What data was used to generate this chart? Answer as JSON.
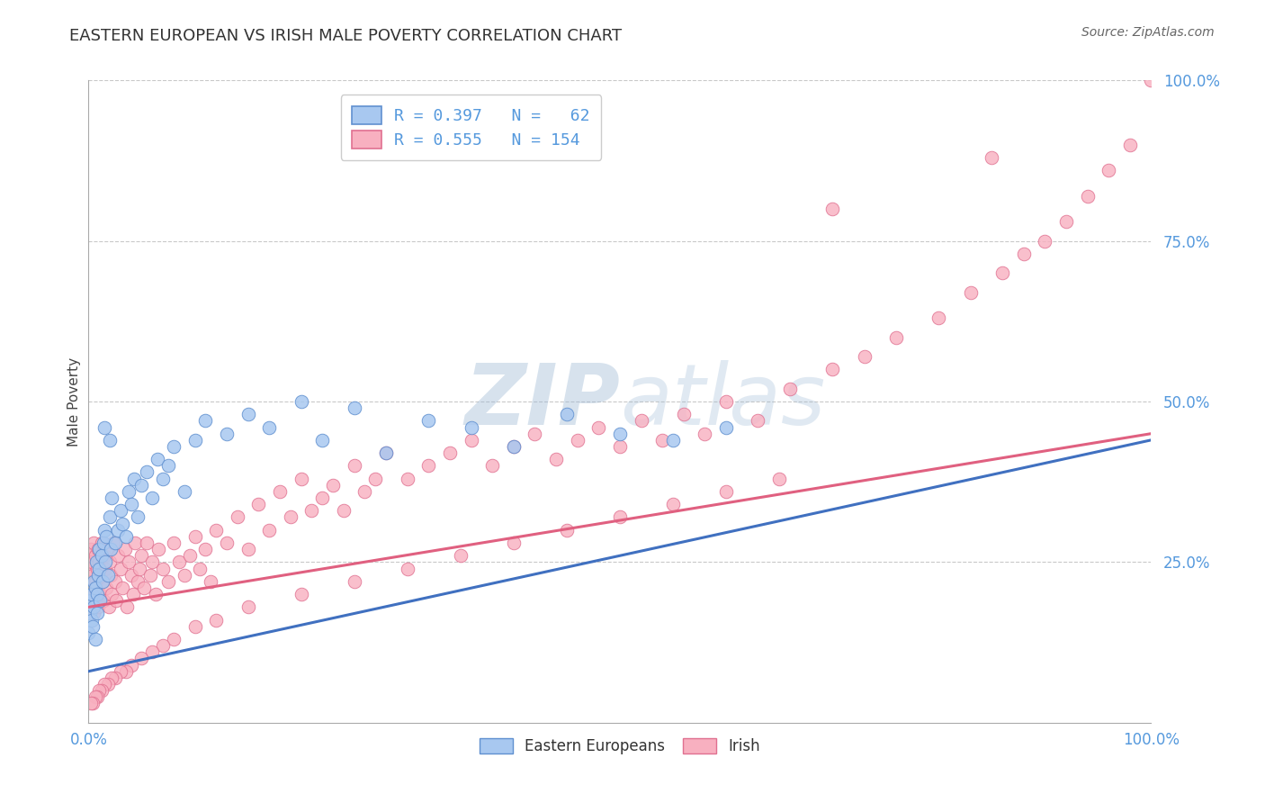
{
  "title": "EASTERN EUROPEAN VS IRISH MALE POVERTY CORRELATION CHART",
  "source": "Source: ZipAtlas.com",
  "ylabel": "Male Poverty",
  "legend_label1": "Eastern Europeans",
  "legend_label2": "Irish",
  "color_blue_fill": "#A8C8F0",
  "color_pink_fill": "#F8B0C0",
  "color_blue_edge": "#6090D0",
  "color_pink_edge": "#E07090",
  "color_blue_line": "#4070C0",
  "color_pink_line": "#E06080",
  "color_tick_label": "#5599DD",
  "color_grid": "#BBBBBB",
  "watermark_color": "#C8D8EC",
  "blue_line_x0": 0.0,
  "blue_line_x1": 1.0,
  "blue_line_y0": 0.08,
  "blue_line_y1": 0.44,
  "pink_line_x0": 0.0,
  "pink_line_x1": 1.0,
  "pink_line_y0": 0.18,
  "pink_line_y1": 0.45,
  "xlim": [
    0,
    1
  ],
  "ylim": [
    0,
    1
  ],
  "blue_x": [
    0.0,
    0.001,
    0.002,
    0.003,
    0.003,
    0.004,
    0.005,
    0.005,
    0.006,
    0.006,
    0.007,
    0.008,
    0.008,
    0.009,
    0.01,
    0.01,
    0.011,
    0.012,
    0.013,
    0.014,
    0.015,
    0.016,
    0.017,
    0.018,
    0.02,
    0.021,
    0.022,
    0.025,
    0.028,
    0.03,
    0.032,
    0.035,
    0.038,
    0.04,
    0.043,
    0.046,
    0.05,
    0.055,
    0.06,
    0.065,
    0.07,
    0.075,
    0.08,
    0.09,
    0.1,
    0.11,
    0.13,
    0.15,
    0.17,
    0.2,
    0.22,
    0.25,
    0.28,
    0.32,
    0.36,
    0.4,
    0.45,
    0.5,
    0.55,
    0.6,
    0.02,
    0.015
  ],
  "blue_y": [
    0.14,
    0.17,
    0.19,
    0.16,
    0.2,
    0.15,
    0.18,
    0.22,
    0.13,
    0.21,
    0.25,
    0.2,
    0.17,
    0.23,
    0.24,
    0.27,
    0.19,
    0.26,
    0.22,
    0.28,
    0.3,
    0.25,
    0.29,
    0.23,
    0.32,
    0.27,
    0.35,
    0.28,
    0.3,
    0.33,
    0.31,
    0.29,
    0.36,
    0.34,
    0.38,
    0.32,
    0.37,
    0.39,
    0.35,
    0.41,
    0.38,
    0.4,
    0.43,
    0.36,
    0.44,
    0.47,
    0.45,
    0.48,
    0.46,
    0.5,
    0.44,
    0.49,
    0.42,
    0.47,
    0.46,
    0.43,
    0.48,
    0.45,
    0.44,
    0.46,
    0.44,
    0.46
  ],
  "pink_x": [
    0.0,
    0.0,
    0.001,
    0.001,
    0.002,
    0.002,
    0.003,
    0.003,
    0.004,
    0.004,
    0.005,
    0.005,
    0.006,
    0.006,
    0.007,
    0.008,
    0.008,
    0.009,
    0.009,
    0.01,
    0.01,
    0.011,
    0.012,
    0.013,
    0.014,
    0.015,
    0.016,
    0.017,
    0.018,
    0.019,
    0.02,
    0.021,
    0.022,
    0.023,
    0.025,
    0.026,
    0.028,
    0.03,
    0.032,
    0.034,
    0.036,
    0.038,
    0.04,
    0.042,
    0.044,
    0.046,
    0.048,
    0.05,
    0.052,
    0.055,
    0.058,
    0.06,
    0.063,
    0.066,
    0.07,
    0.075,
    0.08,
    0.085,
    0.09,
    0.095,
    0.1,
    0.105,
    0.11,
    0.115,
    0.12,
    0.13,
    0.14,
    0.15,
    0.16,
    0.17,
    0.18,
    0.19,
    0.2,
    0.21,
    0.22,
    0.23,
    0.24,
    0.25,
    0.26,
    0.27,
    0.28,
    0.3,
    0.32,
    0.34,
    0.36,
    0.38,
    0.4,
    0.42,
    0.44,
    0.46,
    0.48,
    0.5,
    0.52,
    0.54,
    0.56,
    0.58,
    0.6,
    0.63,
    0.66,
    0.7,
    0.73,
    0.76,
    0.8,
    0.83,
    0.86,
    0.88,
    0.9,
    0.92,
    0.94,
    0.96,
    0.98,
    1.0,
    0.85,
    0.7,
    0.65,
    0.6,
    0.55,
    0.5,
    0.45,
    0.4,
    0.35,
    0.3,
    0.25,
    0.2,
    0.15,
    0.12,
    0.1,
    0.08,
    0.07,
    0.06,
    0.05,
    0.04,
    0.035,
    0.03,
    0.025,
    0.022,
    0.018,
    0.015,
    0.012,
    0.01,
    0.008,
    0.006,
    0.004,
    0.002
  ],
  "pink_y": [
    0.22,
    0.26,
    0.19,
    0.24,
    0.21,
    0.27,
    0.18,
    0.25,
    0.2,
    0.23,
    0.28,
    0.17,
    0.22,
    0.26,
    0.19,
    0.24,
    0.21,
    0.27,
    0.18,
    0.25,
    0.23,
    0.2,
    0.28,
    0.22,
    0.19,
    0.26,
    0.24,
    0.21,
    0.27,
    0.18,
    0.25,
    0.23,
    0.2,
    0.28,
    0.22,
    0.19,
    0.26,
    0.24,
    0.21,
    0.27,
    0.18,
    0.25,
    0.23,
    0.2,
    0.28,
    0.22,
    0.24,
    0.26,
    0.21,
    0.28,
    0.23,
    0.25,
    0.2,
    0.27,
    0.24,
    0.22,
    0.28,
    0.25,
    0.23,
    0.26,
    0.29,
    0.24,
    0.27,
    0.22,
    0.3,
    0.28,
    0.32,
    0.27,
    0.34,
    0.3,
    0.36,
    0.32,
    0.38,
    0.33,
    0.35,
    0.37,
    0.33,
    0.4,
    0.36,
    0.38,
    0.42,
    0.38,
    0.4,
    0.42,
    0.44,
    0.4,
    0.43,
    0.45,
    0.41,
    0.44,
    0.46,
    0.43,
    0.47,
    0.44,
    0.48,
    0.45,
    0.5,
    0.47,
    0.52,
    0.55,
    0.57,
    0.6,
    0.63,
    0.67,
    0.7,
    0.73,
    0.75,
    0.78,
    0.82,
    0.86,
    0.9,
    1.0,
    0.88,
    0.8,
    0.38,
    0.36,
    0.34,
    0.32,
    0.3,
    0.28,
    0.26,
    0.24,
    0.22,
    0.2,
    0.18,
    0.16,
    0.15,
    0.13,
    0.12,
    0.11,
    0.1,
    0.09,
    0.08,
    0.08,
    0.07,
    0.07,
    0.06,
    0.06,
    0.05,
    0.05,
    0.04,
    0.04,
    0.03,
    0.03
  ]
}
